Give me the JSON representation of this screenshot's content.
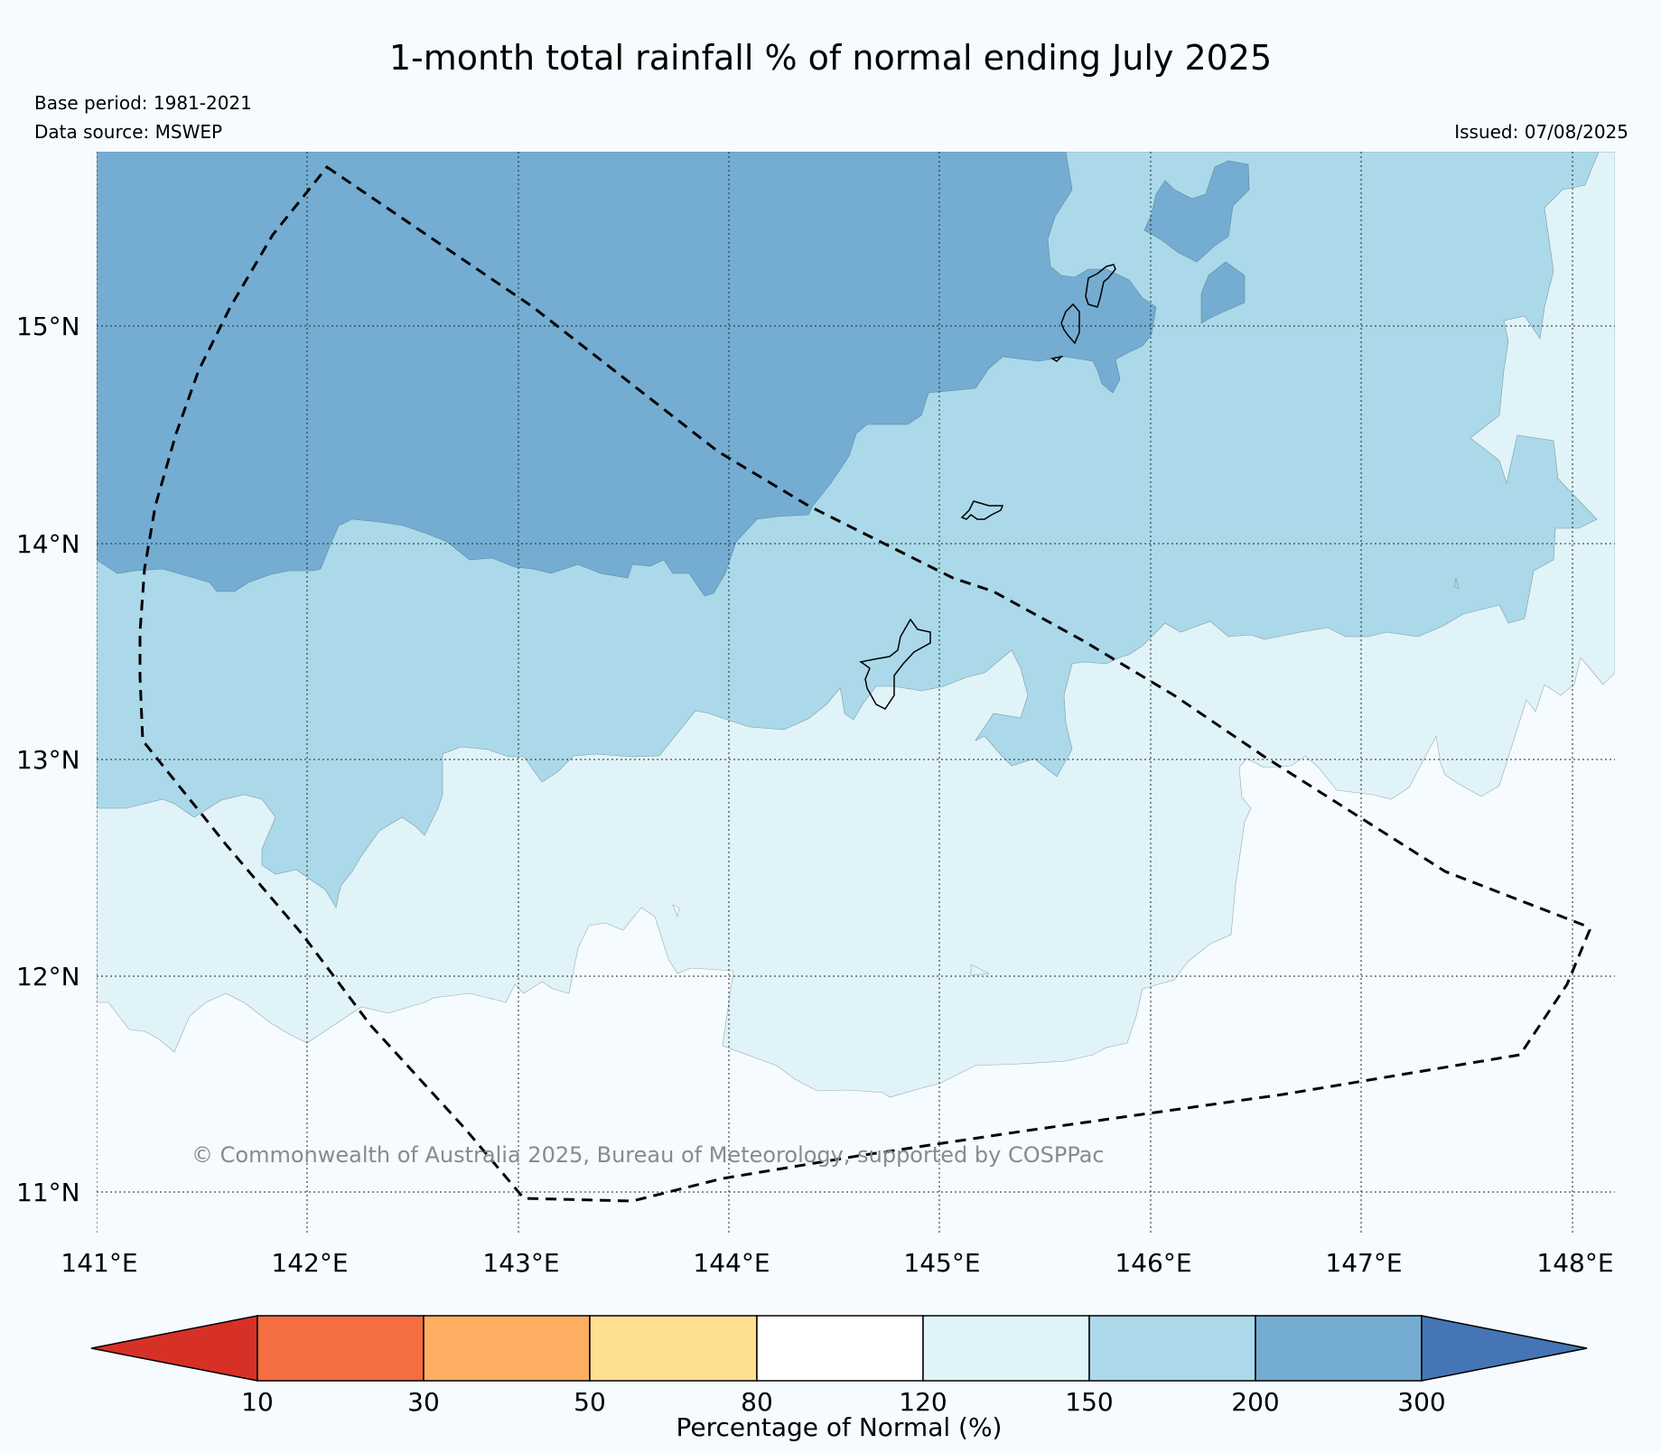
{
  "title": "1-month total rainfall % of normal ending July 2025",
  "base_period": "Base period: 1981-2021",
  "data_source": "Data source: MSWEP",
  "issued": "Issued: 07/08/2025",
  "copyright": "© Commonwealth of Australia 2025, Bureau of Meteorology, supported by COSPPac",
  "map": {
    "lon_range": [
      141,
      148.2
    ],
    "lat_range": [
      10.8,
      15.8
    ],
    "lon_ticks": [
      {
        "value": 141,
        "label": "141°E"
      },
      {
        "value": 142,
        "label": "142°E"
      },
      {
        "value": 143,
        "label": "143°E"
      },
      {
        "value": 144,
        "label": "144°E"
      },
      {
        "value": 145,
        "label": "145°E"
      },
      {
        "value": 146,
        "label": "146°E"
      },
      {
        "value": 147,
        "label": "147°E"
      },
      {
        "value": 148,
        "label": "148°E"
      }
    ],
    "lat_ticks": [
      {
        "value": 15,
        "label": "15°N"
      },
      {
        "value": 14,
        "label": "14°N"
      },
      {
        "value": 13,
        "label": "13°N"
      },
      {
        "value": 12,
        "label": "12°N"
      },
      {
        "value": 11,
        "label": "11°N"
      }
    ],
    "grid": true
  },
  "colorbar": {
    "title": "Percentage of Normal (%)",
    "boundaries": [
      "10",
      "30",
      "50",
      "80",
      "120",
      "150",
      "200",
      "300"
    ],
    "colors": {
      "below_10": "#d73027",
      "10_30": "#f46d43",
      "30_50": "#fdae61",
      "50_80": "#fee090",
      "80_120": "#ffffff",
      "120_150": "#e0f3f8",
      "150_200": "#abd9e9",
      "200_300": "#74add1",
      "above_300": "#4575b4"
    }
  }
}
